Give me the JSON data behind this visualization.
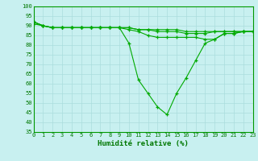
{
  "x": [
    0,
    1,
    2,
    3,
    4,
    5,
    6,
    7,
    8,
    9,
    10,
    11,
    12,
    13,
    14,
    15,
    16,
    17,
    18,
    19,
    20,
    21,
    22,
    23
  ],
  "line1": [
    92,
    90,
    89,
    89,
    89,
    89,
    89,
    89,
    89,
    89,
    89,
    88,
    88,
    88,
    88,
    88,
    87,
    87,
    87,
    87,
    87,
    87,
    87,
    87
  ],
  "line2": [
    91,
    90,
    89,
    89,
    89,
    89,
    89,
    89,
    89,
    89,
    89,
    88,
    88,
    87,
    87,
    87,
    86,
    86,
    86,
    87,
    87,
    87,
    87,
    87
  ],
  "line3": [
    92,
    90,
    89,
    89,
    89,
    89,
    89,
    89,
    89,
    89,
    88,
    87,
    85,
    84,
    84,
    84,
    84,
    84,
    83,
    83,
    86,
    86,
    87,
    87
  ],
  "line4": [
    92,
    90,
    89,
    89,
    89,
    89,
    89,
    89,
    89,
    89,
    81,
    62,
    55,
    48,
    44,
    55,
    63,
    72,
    81,
    83,
    86,
    86,
    87,
    87
  ],
  "line_color": "#00aa00",
  "bg_color": "#c8f0f0",
  "grid_color": "#aadddd",
  "xlabel": "Humidité relative (%)",
  "xlabel_color": "#007700",
  "tick_color": "#007700",
  "ylim": [
    35,
    100
  ],
  "xlim": [
    0,
    23
  ],
  "yticks": [
    35,
    40,
    45,
    50,
    55,
    60,
    65,
    70,
    75,
    80,
    85,
    90,
    95,
    100
  ],
  "xticks": [
    0,
    1,
    2,
    3,
    4,
    5,
    6,
    7,
    8,
    9,
    10,
    11,
    12,
    13,
    14,
    15,
    16,
    17,
    18,
    19,
    20,
    21,
    22,
    23
  ]
}
